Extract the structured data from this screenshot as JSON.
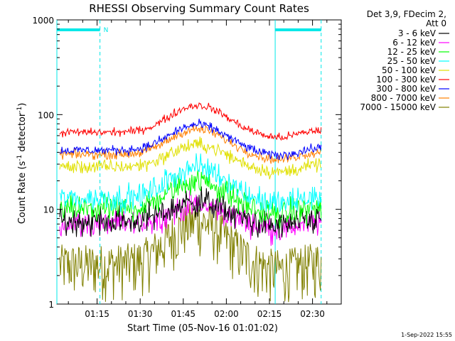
{
  "chart_data": {
    "type": "line",
    "title": "RHESSI Observing Summary Count Rates",
    "xlabel": "Start Time (05-Nov-16 01:01:02)",
    "ylabel": "Count Rate (s",
    "ylabel_sup1": "-1",
    "ylabel_mid": " detector",
    "ylabel_sup2": "-1",
    "ylabel_end": ")",
    "y_scale": "log",
    "ylim": [
      1,
      1000
    ],
    "x_range_minutes": [
      "01:01",
      "02:40"
    ],
    "x_ticks": [
      "01:15",
      "01:30",
      "01:45",
      "02:00",
      "02:15",
      "02:30"
    ],
    "y_ticks": [
      "1",
      "10",
      "100",
      "1000"
    ],
    "legend_header": [
      "Det 3,9, FDecim 2,",
      "Att 0"
    ],
    "legend_position": "right",
    "series": [
      {
        "name": "3 - 6 keV",
        "color": "#000000",
        "base": 7.5,
        "peak": 12,
        "noise": 0.25
      },
      {
        "name": "6 - 12 keV",
        "color": "#ff00ff",
        "base": 7.0,
        "peak": 11,
        "noise": 0.22
      },
      {
        "name": "12 - 25 keV",
        "color": "#00ff00",
        "base": 10,
        "peak": 20,
        "noise": 0.22
      },
      {
        "name": "25 - 50 keV",
        "color": "#00ffff",
        "base": 13,
        "peak": 28,
        "noise": 0.22
      },
      {
        "name": "50 - 100 keV",
        "color": "#e0e000",
        "base": 28,
        "peak": 48,
        "noise": 0.12
      },
      {
        "name": "100 - 300 keV",
        "color": "#ff0000",
        "base": 65,
        "peak": 125,
        "noise": 0.07
      },
      {
        "name": "300 - 800 keV",
        "color": "#0000ff",
        "base": 42,
        "peak": 78,
        "noise": 0.08
      },
      {
        "name": "800 - 7000 keV",
        "color": "#ff8000",
        "base": 38,
        "peak": 70,
        "noise": 0.08
      },
      {
        "name": "7000 - 15000 keV",
        "color": "#808000",
        "base": 2.3,
        "peak": 6.5,
        "noise": 0.9
      }
    ],
    "bars": [
      {
        "label": "N",
        "start": "01:01",
        "end": "01:16",
        "color": "#00e8e8"
      },
      {
        "label": "",
        "start": "02:17",
        "end": "02:33",
        "color": "#00e8e8"
      }
    ],
    "vertical_lines": [
      {
        "time": "01:01",
        "style": "solid"
      },
      {
        "time": "01:16",
        "style": "dashed"
      },
      {
        "time": "02:17",
        "style": "solid"
      },
      {
        "time": "02:33",
        "style": "dashed"
      }
    ],
    "grid": false
  },
  "footer_timestamp": "1-Sep-2022 15:55"
}
